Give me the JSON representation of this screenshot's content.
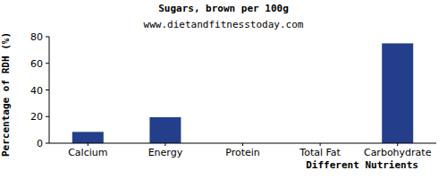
{
  "chart_data": {
    "type": "bar",
    "title": "Sugars, brown per 100g",
    "subtitle": "www.dietandfitnesstoday.com",
    "y_label": "Percentage of RDH (%)",
    "x_label": "Different Nutrients",
    "categories": [
      "Calcium",
      "Energy",
      "Protein",
      "Total Fat",
      "Carbohydrate"
    ],
    "values": [
      8.5,
      19.5,
      0,
      0,
      75
    ],
    "color": "#233e8b",
    "ylim": [
      0,
      80
    ],
    "yticks": [
      0,
      20,
      40,
      60,
      80
    ],
    "grid": false
  }
}
